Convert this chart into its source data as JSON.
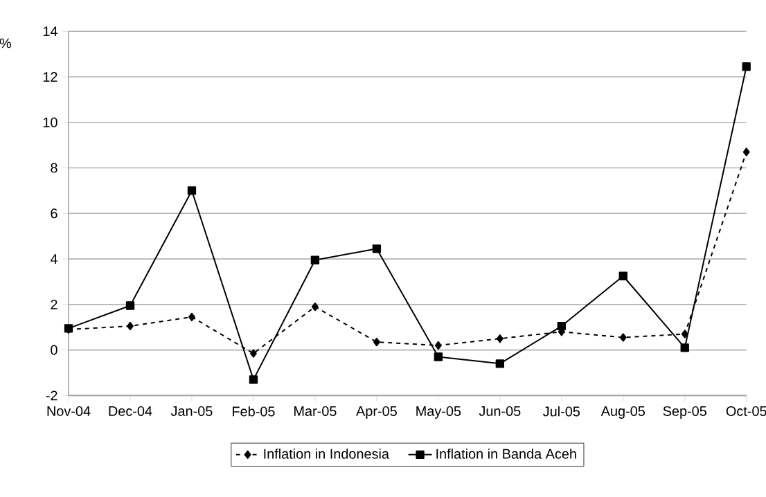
{
  "chart_data": {
    "type": "line",
    "ylabel": "%",
    "categories": [
      "Nov-04",
      "Dec-04",
      "Jan-05",
      "Feb-05",
      "Mar-05",
      "Apr-05",
      "May-05",
      "Jun-05",
      "Jul-05",
      "Aug-05",
      "Sep-05",
      "Oct-05"
    ],
    "series": [
      {
        "name": "Inflation in Indonesia",
        "color": "#000000",
        "marker": "diamond",
        "line_style": "dashed",
        "values": [
          0.9,
          1.05,
          1.45,
          -0.15,
          1.9,
          0.35,
          0.2,
          0.5,
          0.8,
          0.55,
          0.7,
          8.7
        ]
      },
      {
        "name": "Inflation in Banda Aceh",
        "color": "#000000",
        "marker": "square",
        "line_style": "solid",
        "values": [
          0.95,
          1.95,
          7.0,
          -1.3,
          3.95,
          4.45,
          -0.3,
          -0.6,
          1.05,
          3.25,
          0.1,
          12.45
        ]
      }
    ],
    "ylim": [
      -2,
      14
    ],
    "yticks": [
      -2,
      0,
      2,
      4,
      6,
      8,
      10,
      12,
      14
    ],
    "grid": "y",
    "legend": "bottom"
  }
}
